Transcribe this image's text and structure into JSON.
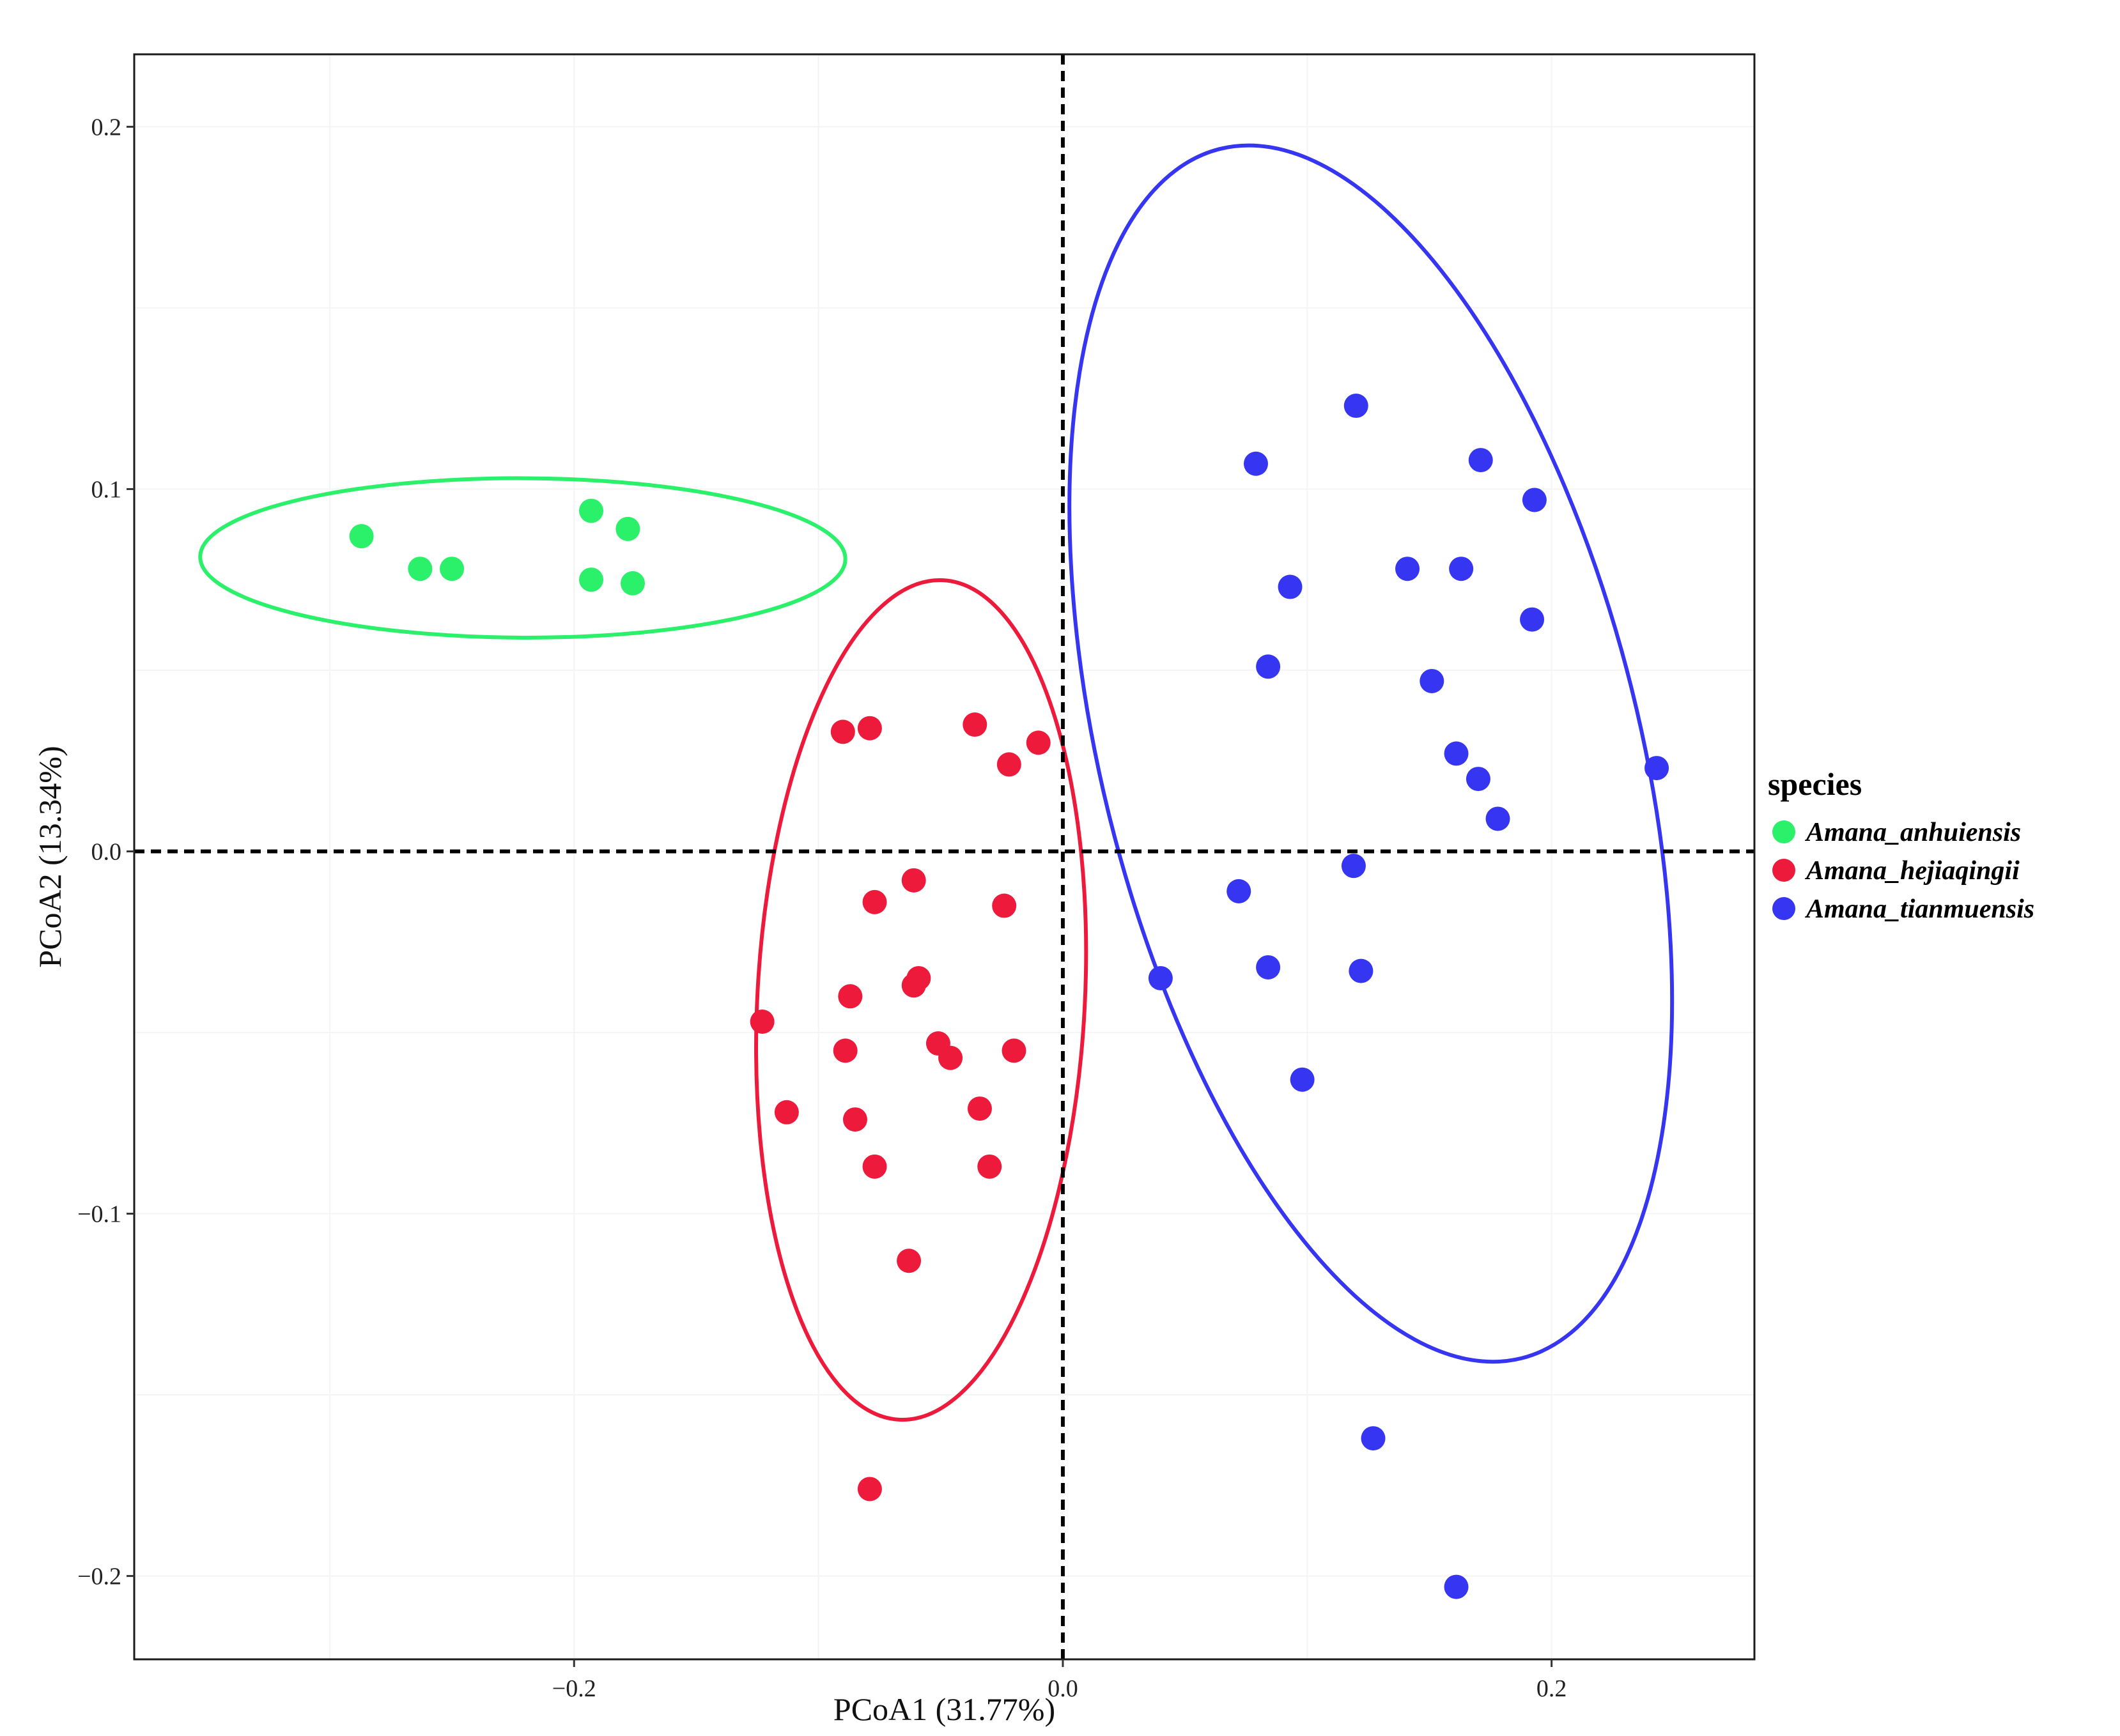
{
  "chart_data": {
    "type": "scatter",
    "title": "",
    "xlabel": "PCoA1 (31.77%)",
    "ylabel": "PCoA2 (13.34%)",
    "xlim": [
      -0.38,
      0.283
    ],
    "ylim": [
      -0.223,
      0.22
    ],
    "xticks": [
      -0.2,
      0.0,
      0.2
    ],
    "xtick_labels": [
      "−0.2",
      "0.0",
      "0.2"
    ],
    "yticks": [
      -0.2,
      -0.1,
      0.0,
      0.1,
      0.2
    ],
    "ytick_labels": [
      "−0.2",
      "−0.1",
      "0.0",
      "0.1",
      "0.2"
    ],
    "grid": true,
    "reference_lines": {
      "x": 0,
      "y": 0,
      "style": "dashed"
    },
    "legend": {
      "title": "species",
      "position": "right"
    },
    "series": [
      {
        "name": "Amana_anhuiensis",
        "color": "#2af06a",
        "points": [
          [
            -0.287,
            0.087
          ],
          [
            -0.263,
            0.078
          ],
          [
            -0.25,
            0.078
          ],
          [
            -0.193,
            0.094
          ],
          [
            -0.178,
            0.089
          ],
          [
            -0.193,
            0.075
          ],
          [
            -0.176,
            0.074
          ]
        ],
        "ellipse": {
          "center": [
            -0.221,
            0.081
          ],
          "semi_axes": [
            0.132,
            0.022
          ],
          "angle_deg": 0.2
        }
      },
      {
        "name": "Amana_hejiaqingii",
        "color": "#ee1a3c",
        "points": [
          [
            -0.09,
            0.033
          ],
          [
            -0.079,
            0.034
          ],
          [
            -0.036,
            0.035
          ],
          [
            -0.022,
            0.024
          ],
          [
            -0.01,
            0.03
          ],
          [
            -0.061,
            -0.008
          ],
          [
            -0.077,
            -0.014
          ],
          [
            -0.024,
            -0.015
          ],
          [
            -0.087,
            -0.04
          ],
          [
            -0.059,
            -0.035
          ],
          [
            -0.061,
            -0.037
          ],
          [
            -0.123,
            -0.047
          ],
          [
            -0.089,
            -0.055
          ],
          [
            -0.051,
            -0.053
          ],
          [
            -0.046,
            -0.057
          ],
          [
            -0.02,
            -0.055
          ],
          [
            -0.113,
            -0.072
          ],
          [
            -0.085,
            -0.074
          ],
          [
            -0.034,
            -0.071
          ],
          [
            -0.077,
            -0.087
          ],
          [
            -0.03,
            -0.087
          ],
          [
            -0.063,
            -0.113
          ],
          [
            -0.079,
            -0.176
          ]
        ],
        "ellipse": {
          "center": [
            -0.058,
            -0.041
          ],
          "semi_axes": [
            0.067,
            0.116
          ],
          "angle_deg": 3
        }
      },
      {
        "name": "Amana_tianmuensis",
        "color": "#3535f2",
        "points": [
          [
            0.12,
            0.123
          ],
          [
            0.079,
            0.107
          ],
          [
            0.171,
            0.108
          ],
          [
            0.193,
            0.097
          ],
          [
            0.141,
            0.078
          ],
          [
            0.163,
            0.078
          ],
          [
            0.093,
            0.073
          ],
          [
            0.192,
            0.064
          ],
          [
            0.084,
            0.051
          ],
          [
            0.151,
            0.047
          ],
          [
            0.161,
            0.027
          ],
          [
            0.17,
            0.02
          ],
          [
            0.243,
            0.023
          ],
          [
            0.178,
            0.009
          ],
          [
            0.119,
            -0.004
          ],
          [
            0.072,
            -0.011
          ],
          [
            0.04,
            -0.035
          ],
          [
            0.084,
            -0.032
          ],
          [
            0.122,
            -0.033
          ],
          [
            0.098,
            -0.063
          ],
          [
            0.127,
            -0.162
          ],
          [
            0.161,
            -0.203
          ]
        ],
        "ellipse": {
          "center": [
            0.126,
            0.027
          ],
          "semi_axes": [
            0.11,
            0.172
          ],
          "angle_deg": -14
        }
      }
    ]
  }
}
